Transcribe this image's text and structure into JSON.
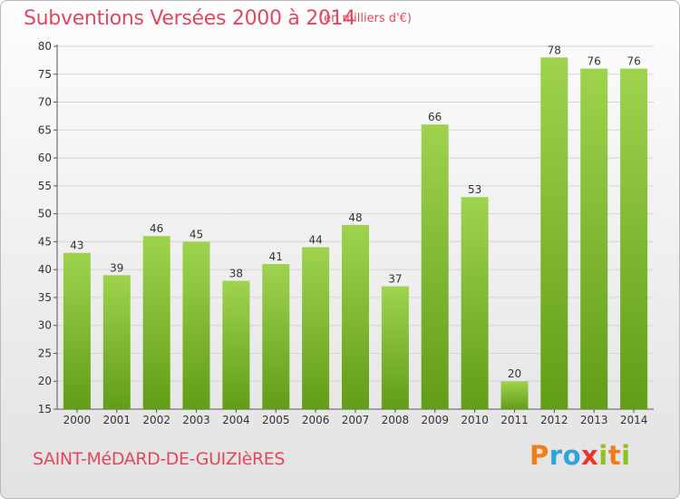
{
  "header": {
    "title": "Subventions Versées 2000 à 2014",
    "subtitle": "(en milliers d'€)"
  },
  "footer": {
    "commune": "SAINT-MéDARD-DE-GUIZIèRES",
    "logo": {
      "text": "Proxiti",
      "colors": [
        "#f07d1a",
        "#2ea4dc",
        "#2ea4dc",
        "#e8372e",
        "#8dc21f",
        "#f07d1a",
        "#8dc21f"
      ]
    }
  },
  "colors": {
    "title": "#e0485e",
    "bar_light": "#9fd34e",
    "bar_dark": "#629d18",
    "axis_text": "#333333",
    "grid": "#d4d4d4"
  },
  "chart_data": {
    "type": "bar",
    "title": "Subventions Versées 2000 à 2014",
    "ylabel": "en milliers d'€",
    "xlabel": "",
    "categories": [
      "2000",
      "2001",
      "2002",
      "2003",
      "2004",
      "2005",
      "2006",
      "2007",
      "2008",
      "2009",
      "2010",
      "2011",
      "2012",
      "2013",
      "2014"
    ],
    "values": [
      43,
      39,
      46,
      45,
      38,
      41,
      44,
      48,
      37,
      66,
      53,
      20,
      78,
      76,
      76
    ],
    "ylim": [
      15,
      80
    ],
    "yticks": [
      15,
      20,
      25,
      30,
      35,
      40,
      45,
      50,
      55,
      60,
      65,
      70,
      75,
      80
    ],
    "grid": true,
    "legend": "none"
  }
}
